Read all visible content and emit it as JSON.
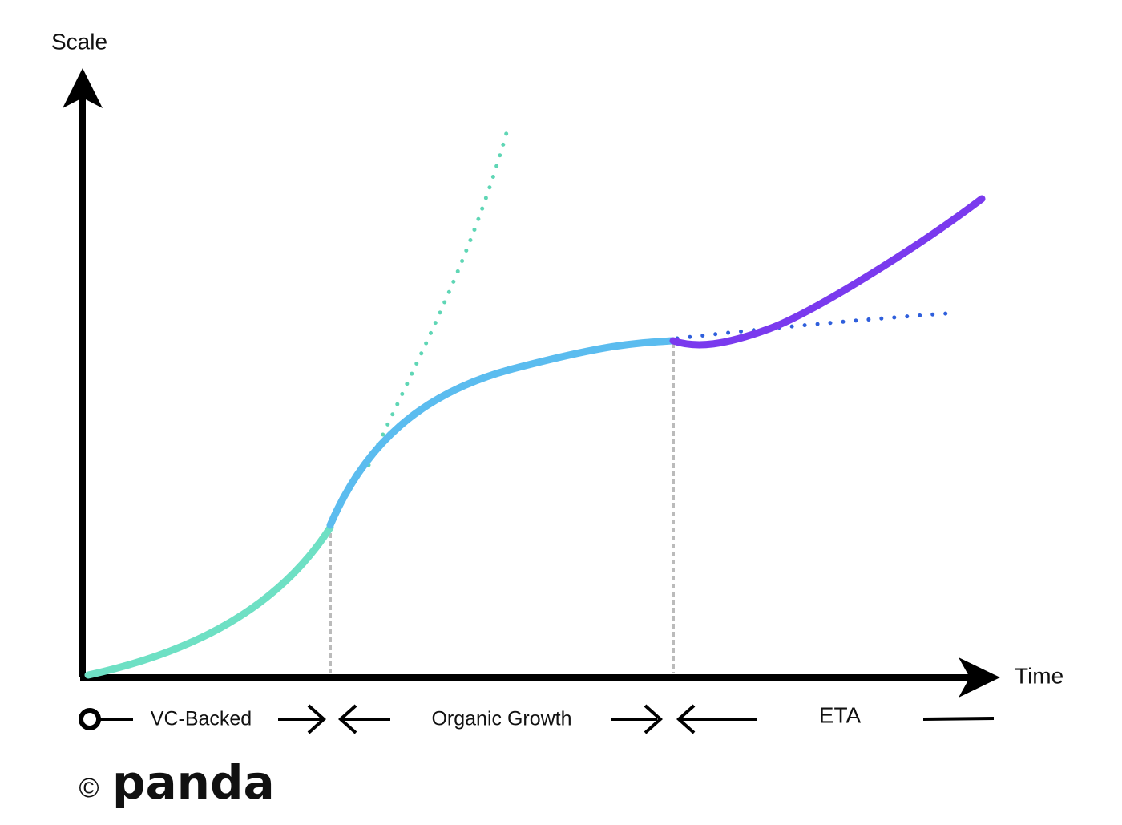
{
  "axes": {
    "y_label": "Scale",
    "x_label": "Time"
  },
  "phases": [
    {
      "label": "VC-Backed"
    },
    {
      "label": "Organic Growth"
    },
    {
      "label": "ETA"
    }
  ],
  "logo": {
    "symbol": "©",
    "brand": "panda"
  }
}
